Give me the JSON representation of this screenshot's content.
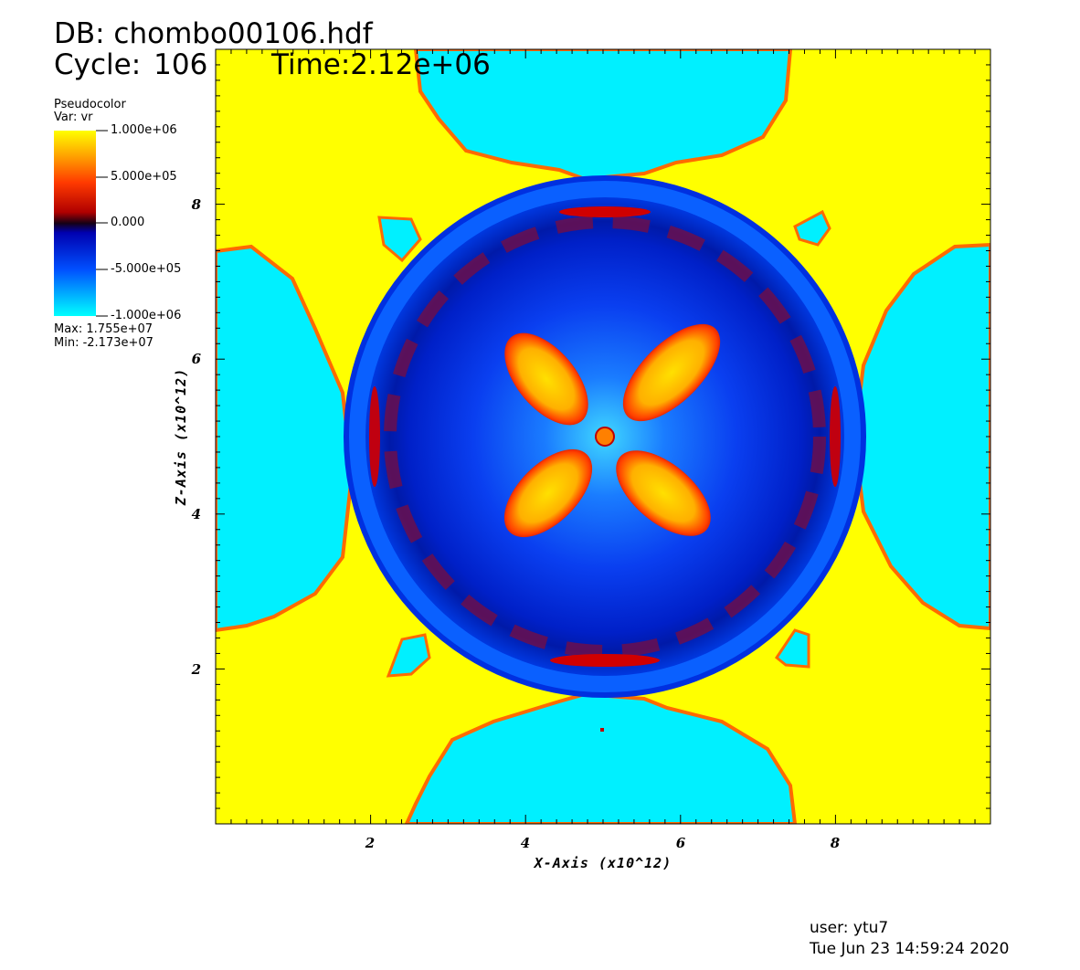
{
  "header": {
    "db_text": "DB: chombo00106.hdf",
    "cycle_label": "Cycle:",
    "cycle_value": "106",
    "time_text": "Time:2.12e+06"
  },
  "legend": {
    "title": "Pseudocolor",
    "var_text": "Var: vr",
    "ticks": [
      "1.000e+06",
      "5.000e+05",
      "0.000",
      "-5.000e+05",
      "-1.000e+06"
    ],
    "max_text": "Max:  1.755e+07",
    "min_text": "Min: -2.173e+07",
    "colormap": [
      "#00ffff",
      "#0040ff",
      "#0000a0",
      "#200020",
      "#c00000",
      "#ff4000",
      "#ffa000",
      "#ffff00"
    ]
  },
  "plot": {
    "x_ticks": [
      "2",
      "4",
      "6",
      "8"
    ],
    "z_ticks": [
      "2",
      "4",
      "6",
      "8"
    ],
    "x_title": "X-Axis (x10^12)",
    "z_title": "Z-Axis (x10^12)",
    "colors": {
      "yellow": "#ffff00",
      "cyan": "#00f0ff",
      "blue": "#0a2ae6",
      "dark_blue": "#001aa8",
      "red": "#d00000",
      "orange": "#ff6a00"
    }
  },
  "footer": {
    "user": "user: ytu7",
    "date": "Tue Jun 23 14:59:24 2020"
  }
}
